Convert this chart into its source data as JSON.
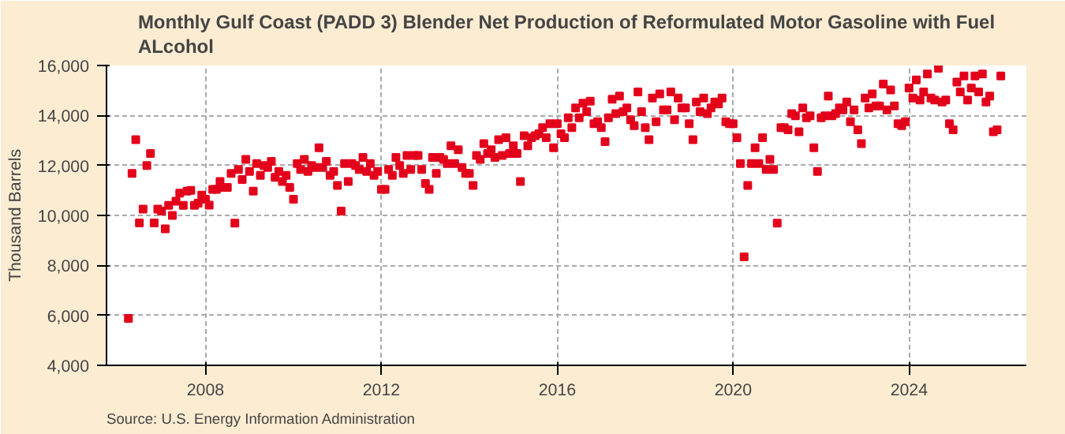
{
  "chart_data": {
    "type": "scatter",
    "title": "Monthly Gulf Coast (PADD 3) Blender Net Production of Reformulated Motor Gasoline with Fuel ALcohol",
    "ylabel": "Thousand Barrels",
    "annotations": [
      "Source: U.S. Energy Information Administration"
    ],
    "xlim": [
      "2005-10",
      "2026-09"
    ],
    "xticks": [
      {
        "value": "2008-01",
        "label": "2008"
      },
      {
        "value": "2012-01",
        "label": "2012"
      },
      {
        "value": "2016-01",
        "label": "2016"
      },
      {
        "value": "2020-01",
        "label": "2020"
      },
      {
        "value": "2024-01",
        "label": "2024"
      }
    ],
    "ylim": [
      4000,
      16000
    ],
    "yticks": [
      {
        "value": 4000,
        "label": "4,000"
      },
      {
        "value": 6000,
        "label": "6,000"
      },
      {
        "value": 8000,
        "label": "8,000"
      },
      {
        "value": 10000,
        "label": "10,000"
      },
      {
        "value": 12000,
        "label": "12,000"
      },
      {
        "value": 14000,
        "label": "14,000"
      },
      {
        "value": 16000,
        "label": "16,000"
      }
    ],
    "grid": true,
    "marker": "square",
    "series": [
      {
        "color": "#e3001b",
        "x": [
          "2006-04",
          "2006-05",
          "2006-06",
          "2006-07",
          "2006-08",
          "2006-09",
          "2006-10",
          "2006-11",
          "2006-12",
          "2007-01",
          "2007-02",
          "2007-03",
          "2007-04",
          "2007-05",
          "2007-06",
          "2007-07",
          "2007-08",
          "2007-09",
          "2007-10",
          "2007-11",
          "2007-12",
          "2008-01",
          "2008-02",
          "2008-03",
          "2008-04",
          "2008-05",
          "2008-06",
          "2008-07",
          "2008-08",
          "2008-09",
          "2008-10",
          "2008-11",
          "2008-12",
          "2009-01",
          "2009-02",
          "2009-03",
          "2009-04",
          "2009-05",
          "2009-06",
          "2009-07",
          "2009-08",
          "2009-09",
          "2009-10",
          "2009-11",
          "2009-12",
          "2010-01",
          "2010-02",
          "2010-03",
          "2010-04",
          "2010-05",
          "2010-06",
          "2010-07",
          "2010-08",
          "2010-09",
          "2010-10",
          "2010-11",
          "2010-12",
          "2011-01",
          "2011-02",
          "2011-03",
          "2011-04",
          "2011-05",
          "2011-06",
          "2011-07",
          "2011-08",
          "2011-09",
          "2011-10",
          "2011-11",
          "2011-12",
          "2012-01",
          "2012-02",
          "2012-03",
          "2012-04",
          "2012-05",
          "2012-06",
          "2012-07",
          "2012-08",
          "2012-09",
          "2012-10",
          "2012-11",
          "2012-12",
          "2013-01",
          "2013-02",
          "2013-03",
          "2013-04",
          "2013-05",
          "2013-06",
          "2013-07",
          "2013-08",
          "2013-09",
          "2013-10",
          "2013-11",
          "2013-12",
          "2014-01",
          "2014-02",
          "2014-03",
          "2014-04",
          "2014-05",
          "2014-06",
          "2014-07",
          "2014-08",
          "2014-09",
          "2014-10",
          "2014-11",
          "2014-12",
          "2015-01",
          "2015-02",
          "2015-03",
          "2015-04",
          "2015-05",
          "2015-06",
          "2015-07",
          "2015-08",
          "2015-09",
          "2015-10",
          "2015-11",
          "2015-12",
          "2016-01",
          "2016-02",
          "2016-03",
          "2016-04",
          "2016-05",
          "2016-06",
          "2016-07",
          "2016-08",
          "2016-09",
          "2016-10",
          "2016-11",
          "2016-12",
          "2017-01",
          "2017-02",
          "2017-03",
          "2017-04",
          "2017-05",
          "2017-06",
          "2017-07",
          "2017-08",
          "2017-09",
          "2017-10",
          "2017-11",
          "2017-12",
          "2018-01",
          "2018-02",
          "2018-03",
          "2018-04",
          "2018-05",
          "2018-06",
          "2018-07",
          "2018-08",
          "2018-09",
          "2018-10",
          "2018-11",
          "2018-12",
          "2019-01",
          "2019-02",
          "2019-03",
          "2019-04",
          "2019-05",
          "2019-06",
          "2019-07",
          "2019-08",
          "2019-09",
          "2019-10",
          "2019-11",
          "2019-12",
          "2020-01",
          "2020-02",
          "2020-03",
          "2020-04",
          "2020-05",
          "2020-06",
          "2020-07",
          "2020-08",
          "2020-09",
          "2020-10",
          "2020-11",
          "2020-12",
          "2021-01",
          "2021-02",
          "2021-03",
          "2021-04",
          "2021-05",
          "2021-06",
          "2021-07",
          "2021-08",
          "2021-09",
          "2021-10",
          "2021-11",
          "2021-12",
          "2022-01",
          "2022-02",
          "2022-03",
          "2022-04",
          "2022-05",
          "2022-06",
          "2022-07",
          "2022-08",
          "2022-09",
          "2022-10",
          "2022-11",
          "2022-12",
          "2023-01",
          "2023-02",
          "2023-03",
          "2023-04",
          "2023-05",
          "2023-06",
          "2023-07",
          "2023-08",
          "2023-09",
          "2023-10",
          "2023-11",
          "2023-12",
          "2024-01",
          "2024-02",
          "2024-03",
          "2024-04",
          "2024-05",
          "2024-06",
          "2024-07",
          "2024-08",
          "2024-09",
          "2024-10",
          "2024-11",
          "2024-12",
          "2025-01",
          "2025-02",
          "2025-03",
          "2025-04",
          "2025-05",
          "2025-06",
          "2025-07",
          "2025-08",
          "2025-09",
          "2025-10",
          "2025-11",
          "2025-12",
          "2026-01",
          "2026-02"
        ],
        "values": [
          5880,
          11680,
          13030,
          9700,
          10250,
          12000,
          12480,
          9700,
          10250,
          10170,
          9460,
          10400,
          10000,
          10570,
          10890,
          10400,
          10970,
          11000,
          10400,
          10490,
          10810,
          10650,
          10410,
          11040,
          11040,
          11360,
          11120,
          11120,
          11680,
          9690,
          11840,
          11440,
          12240,
          11760,
          10970,
          12080,
          11600,
          12000,
          11920,
          12160,
          11520,
          11760,
          11360,
          11600,
          11120,
          10650,
          12080,
          11840,
          12240,
          11760,
          12000,
          11920,
          12710,
          11920,
          12160,
          11600,
          11760,
          11200,
          10170,
          12080,
          11360,
          12080,
          12000,
          11840,
          12320,
          11760,
          12080,
          11600,
          11760,
          11040,
          11040,
          11840,
          11600,
          12320,
          12000,
          11680,
          12400,
          11840,
          12400,
          12400,
          11840,
          11280,
          11040,
          12320,
          11680,
          12320,
          12240,
          12080,
          12790,
          12080,
          12630,
          11920,
          11680,
          11680,
          11200,
          12400,
          12240,
          12870,
          12480,
          12630,
          12320,
          13030,
          12400,
          13110,
          12480,
          12790,
          12480,
          11360,
          13190,
          12790,
          13110,
          13190,
          13270,
          13510,
          13110,
          13670,
          12710,
          13670,
          13270,
          13110,
          13910,
          13510,
          14300,
          13910,
          14490,
          14150,
          14570,
          13670,
          13750,
          13510,
          12950,
          13910,
          14650,
          14070,
          14780,
          14150,
          14300,
          13830,
          13590,
          14940,
          14150,
          13510,
          13030,
          14700,
          13750,
          14860,
          14220,
          14220,
          14940,
          13830,
          14700,
          14300,
          14300,
          13670,
          13030,
          14540,
          14150,
          14700,
          14070,
          14300,
          14540,
          14460,
          14700,
          13750,
          13670,
          13670,
          13110,
          12080,
          8340,
          11200,
          12080,
          12710,
          12080,
          13110,
          11840,
          12240,
          11840,
          9690,
          13510,
          13510,
          13430,
          14070,
          13990,
          13350,
          14300,
          13910,
          13990,
          12710,
          11760,
          13910,
          13990,
          14780,
          13990,
          14070,
          14300,
          14220,
          14540,
          13750,
          14220,
          13430,
          12870,
          14700,
          14300,
          14860,
          14380,
          14380,
          15260,
          14220,
          15020,
          14380,
          13670,
          13590,
          13750,
          15100,
          14700,
          15420,
          14620,
          14940,
          15660,
          14700,
          14620,
          15890,
          14540,
          14620,
          13670,
          13430,
          15340,
          14940,
          15580,
          14620,
          15100,
          15580,
          14940,
          15660,
          14540,
          14780,
          13350,
          13430,
          15580
        ]
      }
    ]
  }
}
